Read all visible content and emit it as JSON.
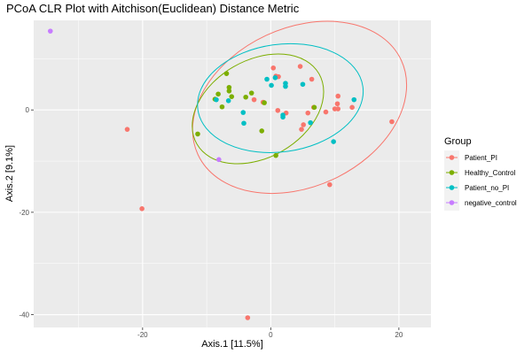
{
  "chart_data": {
    "type": "scatter",
    "title": "PCoA CLR Plot with Aitchison(Euclidean) Distance Metric",
    "xlabel": "Axis.1   [11.5%]",
    "ylabel": "Axis.2   [9.1%]",
    "xlim": [
      -37,
      25
    ],
    "ylim": [
      -42.5,
      17.5
    ],
    "x_ticks": [
      -20,
      0,
      20
    ],
    "y_ticks": [
      -40,
      -20,
      0
    ],
    "grid": true,
    "legend_title": "Group",
    "legend_position": "right",
    "series": [
      {
        "name": "Patient_PI",
        "color": "#F8766D",
        "points": [
          [
            -22.4,
            -3.8
          ],
          [
            -20.1,
            -19.3
          ],
          [
            -3.6,
            -40.6
          ],
          [
            -2.6,
            2.0
          ],
          [
            -1.2,
            1.5
          ],
          [
            0.4,
            8.2
          ],
          [
            0.8,
            6.6
          ],
          [
            1.2,
            6.5
          ],
          [
            1.1,
            -0.1
          ],
          [
            2.4,
            -0.6
          ],
          [
            4.6,
            8.5
          ],
          [
            5.1,
            -2.9
          ],
          [
            4.8,
            -3.8
          ],
          [
            5.8,
            -0.6
          ],
          [
            6.4,
            6.0
          ],
          [
            6.7,
            0.5
          ],
          [
            8.6,
            -0.4
          ],
          [
            9.2,
            -14.6
          ],
          [
            10.0,
            0.2
          ],
          [
            10.4,
            1.2
          ],
          [
            10.5,
            2.7
          ],
          [
            10.5,
            0.2
          ],
          [
            12.7,
            0.5
          ],
          [
            18.9,
            -2.3
          ]
        ],
        "ellipse": {
          "cx": 4.5,
          "cy": 0.5,
          "rx": 17.5,
          "ry": 15.5,
          "angle": -25
        }
      },
      {
        "name": "Healthy_Control",
        "color": "#7CAE00",
        "points": [
          [
            -11.4,
            -4.7
          ],
          [
            -8.7,
            2.1
          ],
          [
            -8.2,
            3.1
          ],
          [
            -7.6,
            0.6
          ],
          [
            -6.9,
            7.1
          ],
          [
            -6.5,
            4.4
          ],
          [
            -6.5,
            3.7
          ],
          [
            -6.1,
            2.6
          ],
          [
            -3.9,
            2.5
          ],
          [
            -3.0,
            3.3
          ],
          [
            -1.4,
            -4.1
          ],
          [
            -1.0,
            1.4
          ],
          [
            0.8,
            -8.9
          ],
          [
            6.8,
            0.5
          ]
        ],
        "ellipse": {
          "cx": -2.0,
          "cy": 0.2,
          "rx": 11.0,
          "ry": 9.5,
          "angle": -30
        }
      },
      {
        "name": "Patient_no_PI",
        "color": "#00BFC4",
        "points": [
          [
            -8.5,
            2.0
          ],
          [
            -6.6,
            1.8
          ],
          [
            -4.3,
            -0.5
          ],
          [
            -4.2,
            -2.6
          ],
          [
            -0.6,
            6.0
          ],
          [
            0.1,
            4.8
          ],
          [
            0.7,
            6.3
          ],
          [
            1.9,
            -1.0
          ],
          [
            1.9,
            -1.4
          ],
          [
            2.3,
            4.6
          ],
          [
            2.3,
            5.2
          ],
          [
            5.0,
            5.0
          ],
          [
            6.2,
            -2.5
          ],
          [
            9.8,
            -6.2
          ],
          [
            13.0,
            2.0
          ]
        ],
        "ellipse": {
          "cx": 1.5,
          "cy": 2.3,
          "rx": 13.0,
          "ry": 10.5,
          "angle": -8
        }
      },
      {
        "name": "negative_control",
        "color": "#C77CFF",
        "points": [
          [
            -34.4,
            15.4
          ],
          [
            -8.1,
            -9.7
          ]
        ]
      }
    ]
  }
}
